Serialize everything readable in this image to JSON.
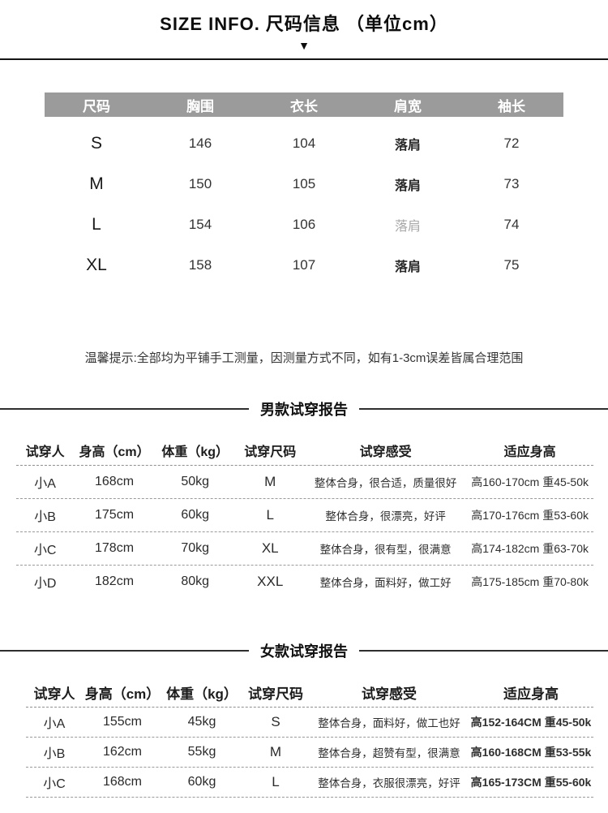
{
  "header": {
    "title": "SIZE INFO. 尺码信息 （单位cm）",
    "arrow_icon": "▼"
  },
  "colors": {
    "size_table_header_bg": "#9b9b9b",
    "size_table_header_text": "#ffffff",
    "muted_cell_text": "#a8a8a8",
    "divider_line": "#2e2e2e"
  },
  "size_table": {
    "columns": [
      "尺码",
      "胸围",
      "衣长",
      "肩宽",
      "袖长"
    ],
    "rows": [
      [
        "S",
        "146",
        "104",
        "落肩",
        "72"
      ],
      [
        "M",
        "150",
        "105",
        "落肩",
        "73"
      ],
      [
        "L",
        "154",
        "106",
        "落肩",
        "74"
      ],
      [
        "XL",
        "158",
        "107",
        "落肩",
        "75"
      ]
    ]
  },
  "tip": "温馨提示:全部均为平铺手工测量，因测量方式不同，如有1-3cm误差皆属合理范围",
  "men_report": {
    "title": "男款试穿报告",
    "columns": [
      "试穿人",
      "身高（cm）",
      "体重（kg）",
      "试穿尺码",
      "试穿感受",
      "适应身高"
    ],
    "rows": [
      [
        "小A",
        "168cm",
        "50kg",
        "M",
        "整体合身，很合适，质量很好",
        "高160-170cm 重45-50k"
      ],
      [
        "小B",
        "175cm",
        "60kg",
        "L",
        "整体合身，很漂亮，好评",
        "高170-176cm 重53-60k"
      ],
      [
        "小C",
        "178cm",
        "70kg",
        "XL",
        "整体合身，很有型，很满意",
        "高174-182cm 重63-70k"
      ],
      [
        "小D",
        "182cm",
        "80kg",
        "XXL",
        "整体合身，面料好，做工好",
        "高175-185cm 重70-80k"
      ]
    ]
  },
  "women_report": {
    "title": "女款试穿报告",
    "columns": [
      "试穿人",
      "身高（cm）",
      "体重（kg）",
      "试穿尺码",
      "试穿感受",
      "适应身高"
    ],
    "rows": [
      [
        "小A",
        "155cm",
        "45kg",
        "S",
        "整体合身，面料好，做工也好",
        "高152-164CM 重45-50k"
      ],
      [
        "小B",
        "162cm",
        "55kg",
        "M",
        "整体合身，超赞有型，很满意",
        "高160-168CM 重53-55k"
      ],
      [
        "小C",
        "168cm",
        "60kg",
        "L",
        "整体合身，衣服很漂亮，好评",
        "高165-173CM 重55-60k"
      ]
    ]
  }
}
